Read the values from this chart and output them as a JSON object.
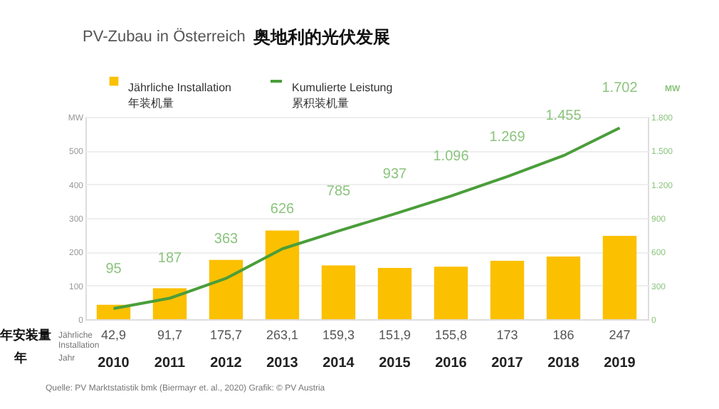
{
  "chart_data": {
    "type": "bar",
    "title": "PV-Zubau in Österreich",
    "subtitle": "奥地利的光伏发展",
    "categories": [
      "2010",
      "2011",
      "2012",
      "2013",
      "2014",
      "2015",
      "2016",
      "2017",
      "2018",
      "2019"
    ],
    "series": [
      {
        "name": "Jährliche Installation\n年装机量",
        "color": "#fbc000",
        "values": [
          42.9,
          91.7,
          175.7,
          263.1,
          159.3,
          151.9,
          155.8,
          173,
          186,
          247
        ],
        "value_labels": [
          "42,9",
          "91,7",
          "175,7",
          "263,1",
          "159,3",
          "151,9",
          "155,8",
          "173",
          "186",
          "247"
        ]
      },
      {
        "name": "Kumulierte Leistung\n累积装机量",
        "type": "line",
        "axis": "y2",
        "color": "#4a9e3a",
        "values": [
          95,
          187,
          363,
          626,
          785,
          937,
          1096,
          1269,
          1455,
          1702
        ],
        "value_labels": [
          "95",
          "187",
          "363",
          "626",
          "785",
          "937",
          "1.096",
          "1.269",
          "1.455",
          "1.702"
        ]
      }
    ],
    "ylim": [
      0,
      600
    ],
    "yticks": [
      0,
      100,
      200,
      300,
      400,
      500,
      {
        "value": 600,
        "label": "MW"
      }
    ],
    "y2lim": [
      0,
      1800
    ],
    "y2ticks": [
      0,
      300,
      600,
      900,
      {
        "value": 1200,
        "label": "1.200"
      },
      {
        "value": 1500,
        "label": "1.500"
      },
      {
        "value": 1800,
        "label": "1.800"
      }
    ],
    "y2label": "MW",
    "grid": "y",
    "legend": "top",
    "marker": "none",
    "line_style": "solid",
    "annotations": [
      "年安装量",
      "Jährliche\nInstallation",
      "年",
      "Jahr",
      "Quelle: PV Marktstatistik bmk (Biermayr et. al., 2020) Grafik: © PV Austria"
    ]
  }
}
